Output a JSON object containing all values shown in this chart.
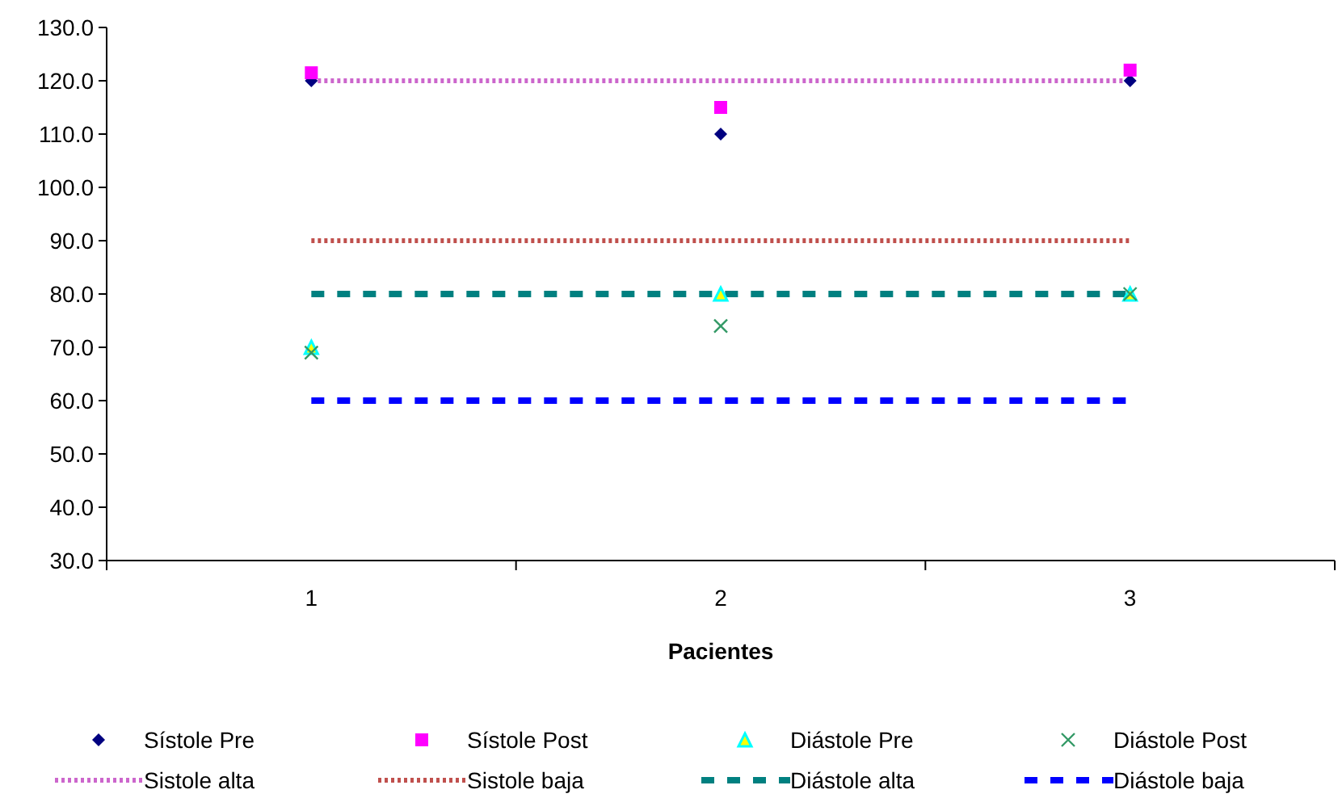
{
  "chart_data": {
    "type": "scatter",
    "xlabel": "Pacientes",
    "categories": [
      "1",
      "2",
      "3"
    ],
    "ylim": [
      30,
      130
    ],
    "yticks": [
      {
        "value": 30,
        "label": "30.0"
      },
      {
        "value": 40,
        "label": "40.0"
      },
      {
        "value": 50,
        "label": "50.0"
      },
      {
        "value": 60,
        "label": "60.0"
      },
      {
        "value": 70,
        "label": "70.0"
      },
      {
        "value": 80,
        "label": "80.0"
      },
      {
        "value": 90,
        "label": "90.0"
      },
      {
        "value": 100,
        "label": "100.0"
      },
      {
        "value": 110,
        "label": "110.0"
      },
      {
        "value": 120,
        "label": "120.0"
      },
      {
        "value": 130,
        "label": "130.0"
      }
    ],
    "grid": false,
    "legend": "bottom",
    "series": [
      {
        "name": "Sístole Pre",
        "marker": "diamond",
        "color": "#000080",
        "values": [
          120,
          110,
          120
        ]
      },
      {
        "name": "Sístole Post",
        "marker": "square",
        "color": "#ff00ff",
        "values": [
          121.5,
          115,
          122
        ]
      },
      {
        "name": "Diástole Pre",
        "marker": "triangle",
        "color": "#00ffff",
        "values": [
          70,
          80,
          80
        ]
      },
      {
        "name": "Diástole Post",
        "marker": "cross",
        "color": "#339966",
        "values": [
          69,
          74,
          80
        ]
      },
      {
        "name": "Sistole alta",
        "type": "line",
        "marker": "none",
        "line_style": "dotted",
        "color": "#cc66cc",
        "values": [
          120,
          120,
          120
        ]
      },
      {
        "name": "Sistole baja",
        "type": "line",
        "marker": "none",
        "line_style": "dotted",
        "color": "#c0504d",
        "values": [
          90,
          90,
          90
        ]
      },
      {
        "name": "Diástole alta",
        "type": "line",
        "marker": "none",
        "line_style": "dashed",
        "color": "#008080",
        "values": [
          80,
          80,
          80
        ]
      },
      {
        "name": "Diástole baja",
        "type": "line",
        "marker": "none",
        "line_style": "dashed",
        "color": "#0000ff",
        "values": [
          60,
          60,
          60
        ]
      }
    ]
  }
}
